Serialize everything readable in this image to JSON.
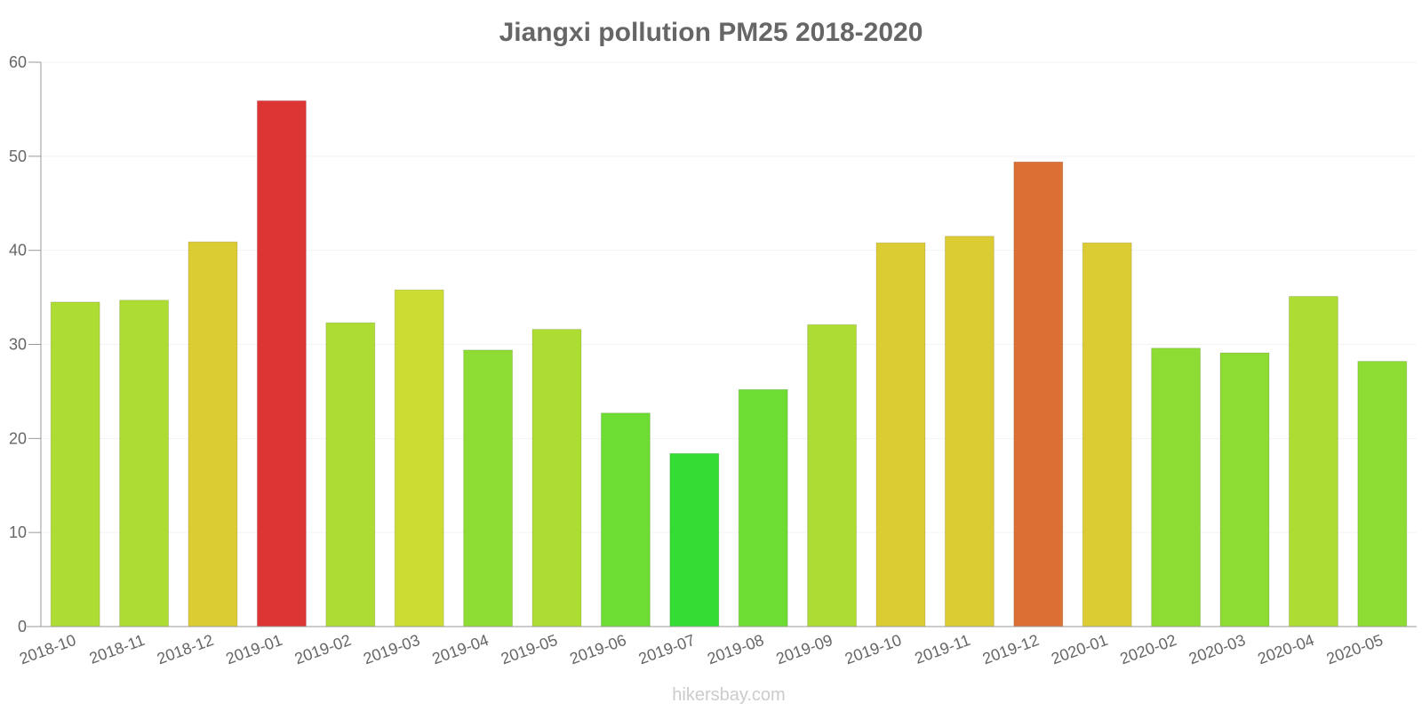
{
  "chart_data": {
    "type": "bar",
    "title": "Jiangxi pollution PM25 2018-2020",
    "xlabel": "",
    "ylabel": "",
    "ylim": [
      0,
      60
    ],
    "yticks": [
      0,
      10,
      20,
      30,
      40,
      50,
      60
    ],
    "grid": true,
    "categories": [
      "2018-10",
      "2018-11",
      "2018-12",
      "2019-01",
      "2019-02",
      "2019-03",
      "2019-04",
      "2019-05",
      "2019-06",
      "2019-07",
      "2019-08",
      "2019-09",
      "2019-10",
      "2019-11",
      "2019-12",
      "2020-01",
      "2020-02",
      "2020-03",
      "2020-04",
      "2020-05"
    ],
    "values": [
      34.5,
      34.7,
      40.9,
      55.9,
      32.3,
      35.8,
      29.4,
      31.6,
      22.7,
      18.4,
      25.2,
      32.1,
      40.8,
      41.5,
      49.4,
      40.8,
      29.6,
      29.1,
      35.1,
      28.2
    ],
    "colors": [
      "#addc33",
      "#addc33",
      "#dccc33",
      "#dc3533",
      "#addc33",
      "#cddc33",
      "#8ddc33",
      "#addc33",
      "#6ddc33",
      "#35dc33",
      "#6ddc33",
      "#addc33",
      "#dccc33",
      "#dccc33",
      "#dc6f33",
      "#dccc33",
      "#8ddc33",
      "#8ddc33",
      "#addc33",
      "#8ddc33"
    ]
  },
  "watermark": "hikersbay.com"
}
